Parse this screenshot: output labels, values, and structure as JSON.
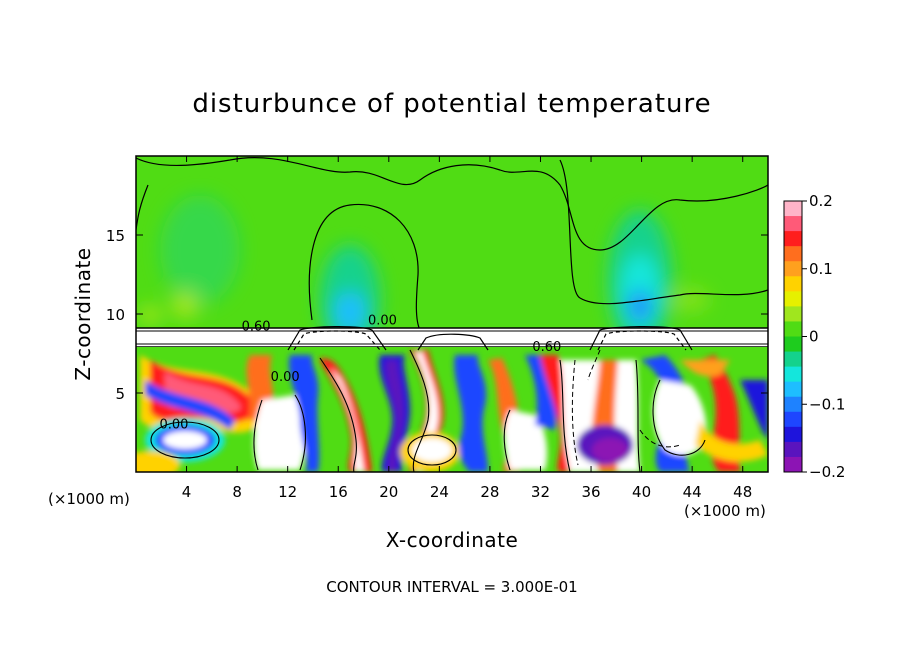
{
  "chart_data": {
    "type": "heatmap",
    "title": "disturbunce of potential temperature",
    "xlabel": "X-coordinate",
    "ylabel": "Z-coordinate",
    "x_unit": "(×1000 m)",
    "xlim": [
      0,
      50
    ],
    "ylim": [
      0,
      20
    ],
    "x_ticks": [
      4,
      8,
      12,
      16,
      20,
      24,
      28,
      32,
      36,
      40,
      44,
      48
    ],
    "y_ticks": [
      5,
      10,
      15
    ],
    "colorbar": {
      "range": [
        -0.2,
        0.2
      ],
      "ticks": [
        "0.2",
        "0.1",
        "0",
        "−0.1",
        "−0.2"
      ],
      "colors": [
        "#ffb4c8",
        "#ff5a78",
        "#ff1e1e",
        "#ff6e1e",
        "#ffa01e",
        "#ffd200",
        "#e6f000",
        "#a0e61e",
        "#50dc14",
        "#1ecc1e",
        "#14d28c",
        "#14e6dc",
        "#1ebeff",
        "#1e82ff",
        "#1e46ff",
        "#1e14dc",
        "#5a14be",
        "#8c14b4"
      ]
    },
    "contour_labels": [
      {
        "text": "0.60",
        "x": 9.5,
        "z": 9.2
      },
      {
        "text": "0.00",
        "x": 19.5,
        "z": 9.6
      },
      {
        "text": "0.60",
        "x": 32.5,
        "z": 7.9
      },
      {
        "text": "0.00",
        "x": 11.8,
        "z": 6.0
      },
      {
        "text": "0.00",
        "x": 3.0,
        "z": 3.0
      }
    ],
    "contour_interval_text": "CONTOUR INTERVAL = 3.000E-01"
  }
}
